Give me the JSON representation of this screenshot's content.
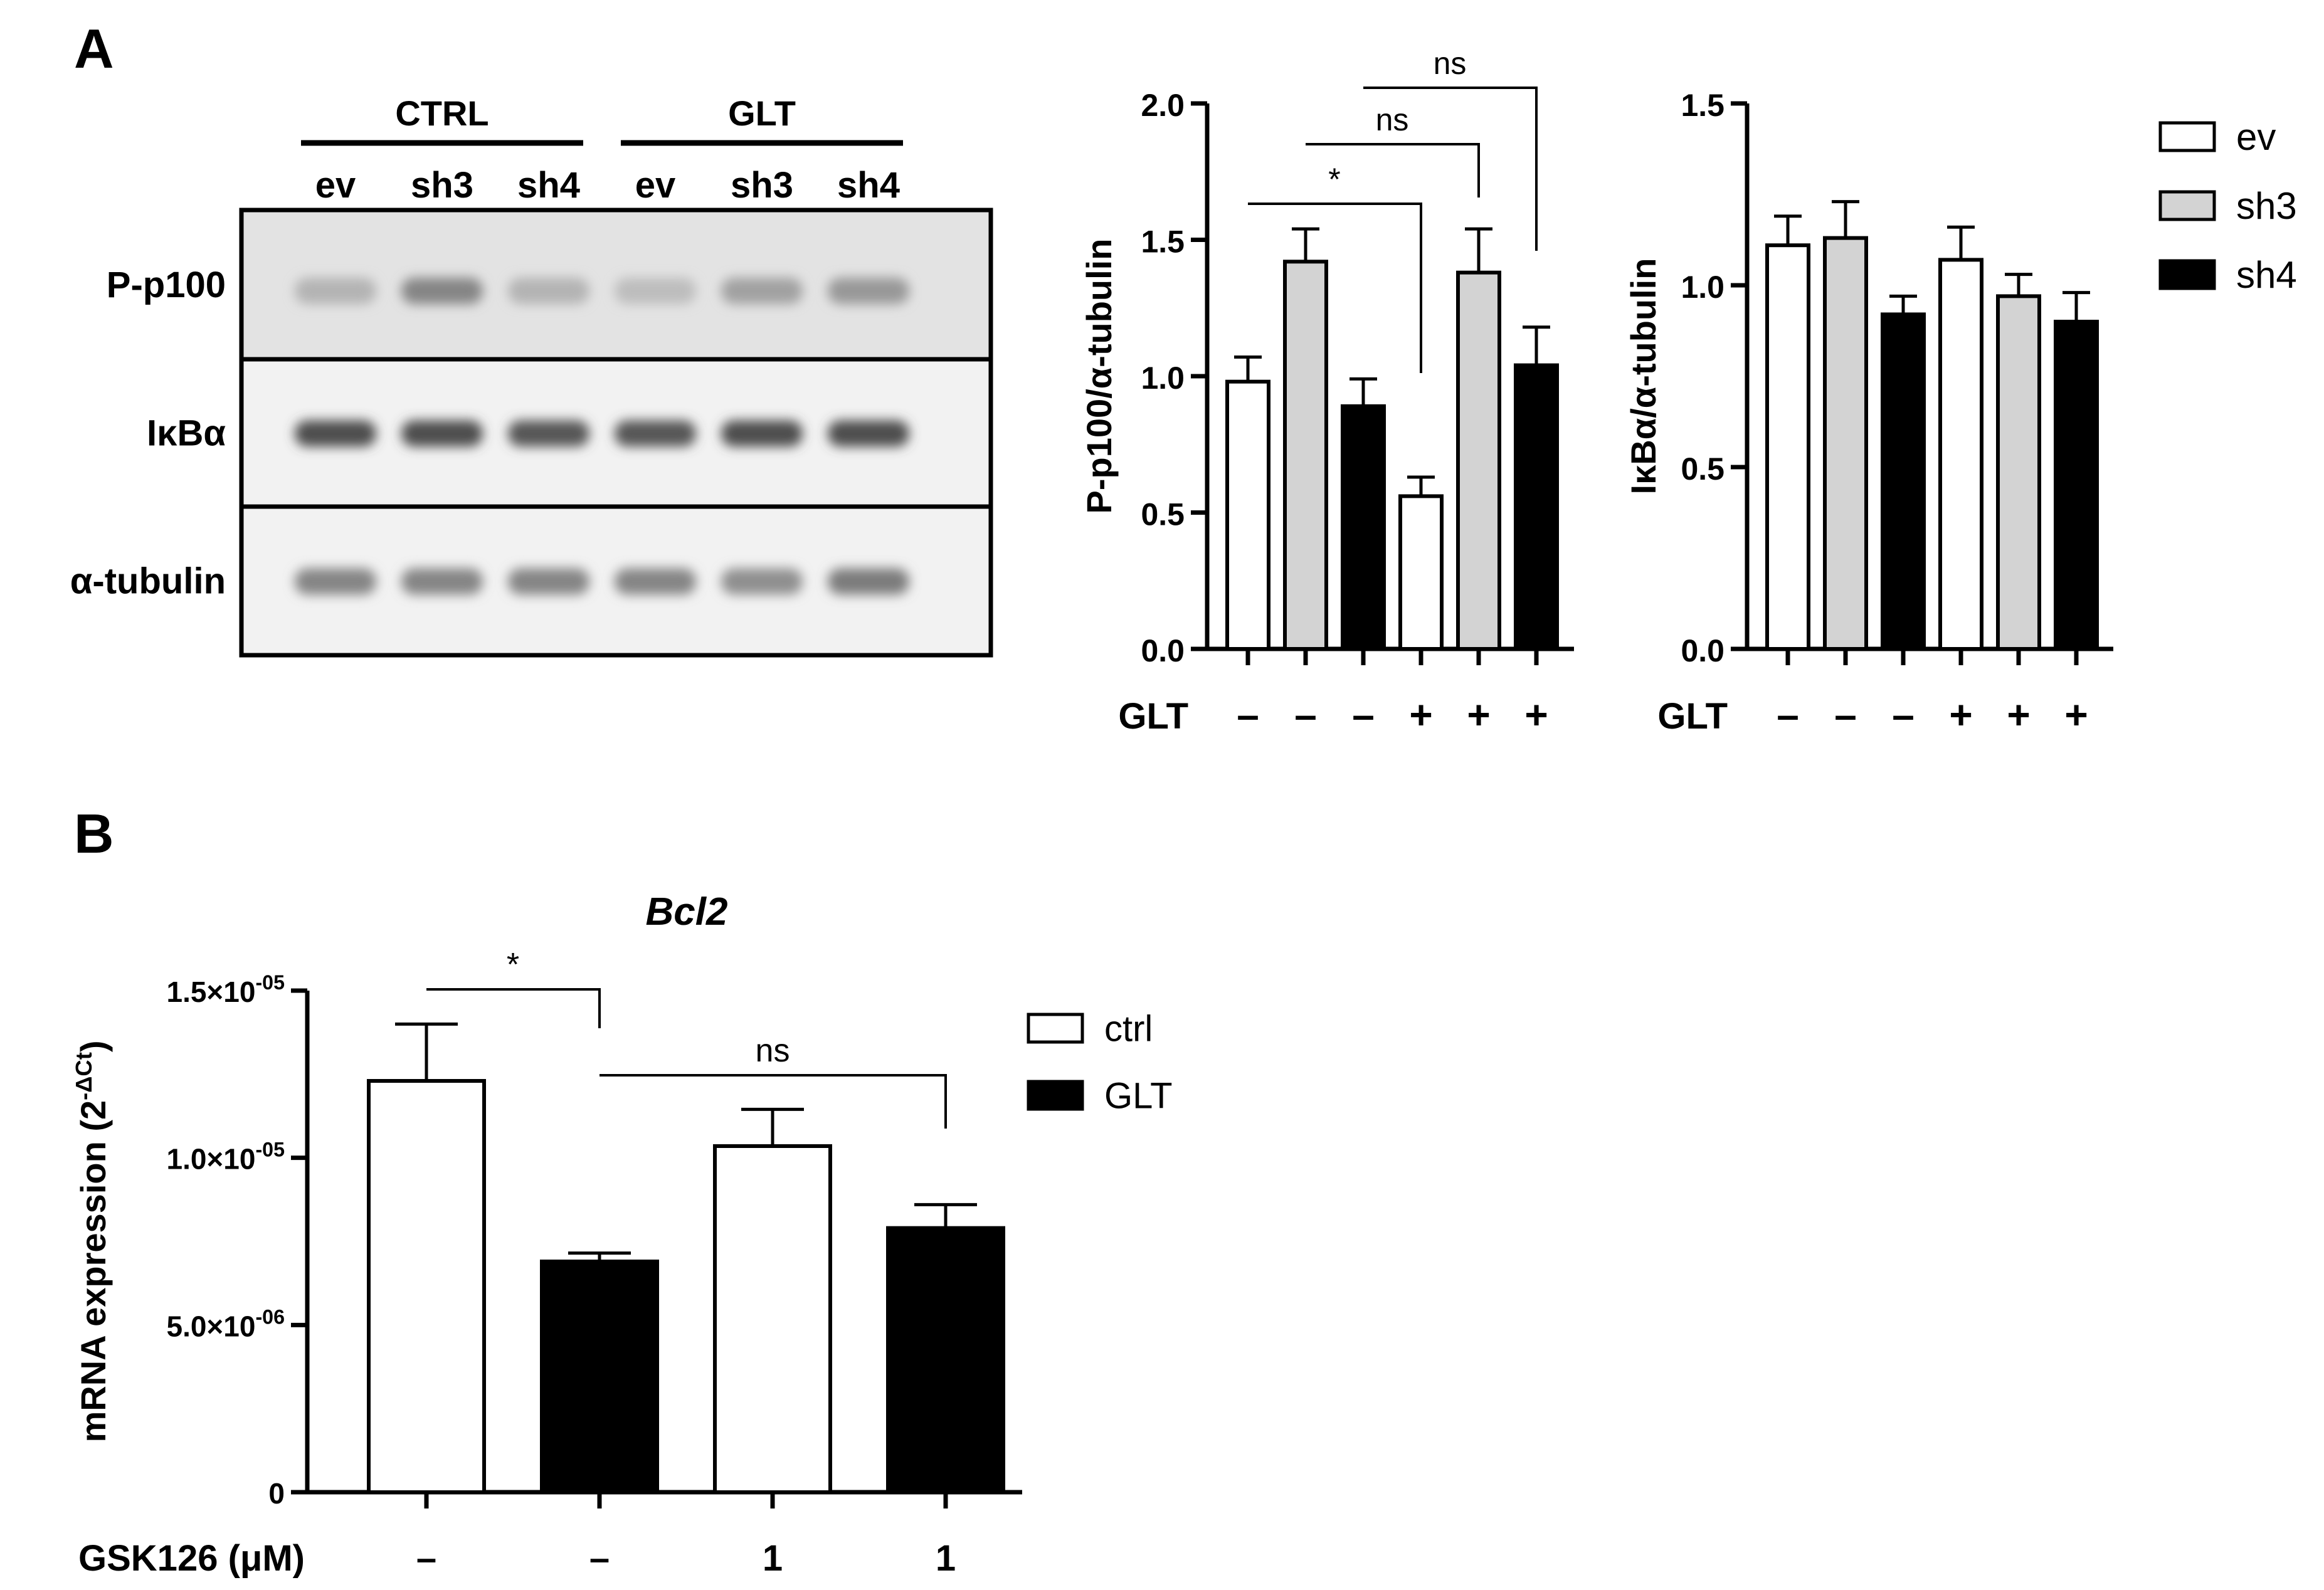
{
  "panel_labels": {
    "a": "A",
    "b": "B"
  },
  "blot": {
    "groups": [
      {
        "label": "CTRL",
        "lanes": [
          "ev",
          "sh3",
          "sh4"
        ]
      },
      {
        "label": "GLT",
        "lanes": [
          "ev",
          "sh3",
          "sh4"
        ]
      }
    ],
    "rows": [
      {
        "label": "P-p100",
        "bands": [
          0.3,
          0.55,
          0.3,
          0.25,
          0.4,
          0.45
        ]
      },
      {
        "label": "IκBα",
        "bands": [
          0.85,
          0.85,
          0.8,
          0.8,
          0.85,
          0.85
        ]
      },
      {
        "label": "α-tubulin",
        "bands": [
          0.55,
          0.55,
          0.55,
          0.55,
          0.5,
          0.6
        ]
      }
    ]
  },
  "legend_a": [
    {
      "label": "ev",
      "color": "#ffffff"
    },
    {
      "label": "sh3",
      "color": "#d3d3d3"
    },
    {
      "label": "sh4",
      "color": "#000000"
    }
  ],
  "legend_b": [
    {
      "label": "ctrl",
      "color": "#ffffff"
    },
    {
      "label": "GLT",
      "color": "#000000"
    }
  ],
  "chart_data": [
    {
      "type": "bar",
      "title": "",
      "ylabel": "P-p100/α-tubulin",
      "xlabel": "",
      "ylim": [
        0,
        2.0
      ],
      "yticks": [
        "0.0",
        "0.5",
        "1.0",
        "1.5",
        "2.0"
      ],
      "row_label": "GLT",
      "categories": [
        "–",
        "–",
        "–",
        "+",
        "+",
        "+"
      ],
      "values": [
        0.98,
        1.42,
        0.89,
        0.56,
        1.38,
        1.04
      ],
      "errors": [
        0.09,
        0.12,
        0.1,
        0.07,
        0.16,
        0.14
      ],
      "colors": [
        "#ffffff",
        "#d3d3d3",
        "#000000",
        "#ffffff",
        "#d3d3d3",
        "#000000"
      ],
      "annotations": [
        {
          "from": 0,
          "to": 3,
          "text": "*"
        },
        {
          "from": 1,
          "to": 4,
          "text": "ns"
        },
        {
          "from": 2,
          "to": 5,
          "text": "ns"
        }
      ]
    },
    {
      "type": "bar",
      "title": "",
      "ylabel": "IκBα/α-tubulin",
      "xlabel": "",
      "ylim": [
        0,
        1.5
      ],
      "yticks": [
        "0.0",
        "0.5",
        "1.0",
        "1.5"
      ],
      "row_label": "GLT",
      "categories": [
        "–",
        "–",
        "–",
        "+",
        "+",
        "+"
      ],
      "values": [
        1.11,
        1.13,
        0.92,
        1.07,
        0.97,
        0.9
      ],
      "errors": [
        0.08,
        0.1,
        0.05,
        0.09,
        0.06,
        0.08
      ],
      "colors": [
        "#ffffff",
        "#d3d3d3",
        "#000000",
        "#ffffff",
        "#d3d3d3",
        "#000000"
      ],
      "annotations": []
    },
    {
      "type": "bar",
      "title": "Bcl2",
      "ylabel": "mRNA expression (2",
      "ylabel_sup": "-ΔCt",
      "ylabel_end": ")",
      "xlabel": "",
      "ylim": [
        0,
        1.5e-05
      ],
      "ytick_values": [
        0,
        5e-06,
        1e-05,
        1.5e-05
      ],
      "yticks": [
        {
          "mant": "0",
          "exp": ""
        },
        {
          "mant": "5.0×10",
          "exp": "-06"
        },
        {
          "mant": "1.0×10",
          "exp": "-05"
        },
        {
          "mant": "1.5×10",
          "exp": "-05"
        }
      ],
      "row_label": "GSK126 (μM)",
      "categories": [
        "–",
        "–",
        "1",
        "1"
      ],
      "values": [
        1.23e-05,
        6.9e-06,
        1.035e-05,
        7.9e-06
      ],
      "errors": [
        1.7e-06,
        2.5e-07,
        1.1e-06,
        7e-07
      ],
      "colors": [
        "#ffffff",
        "#000000",
        "#ffffff",
        "#000000"
      ],
      "annotations": [
        {
          "from": 0,
          "to": 1,
          "text": "*"
        },
        {
          "from": 1,
          "to": 3,
          "text": "ns"
        }
      ]
    }
  ]
}
